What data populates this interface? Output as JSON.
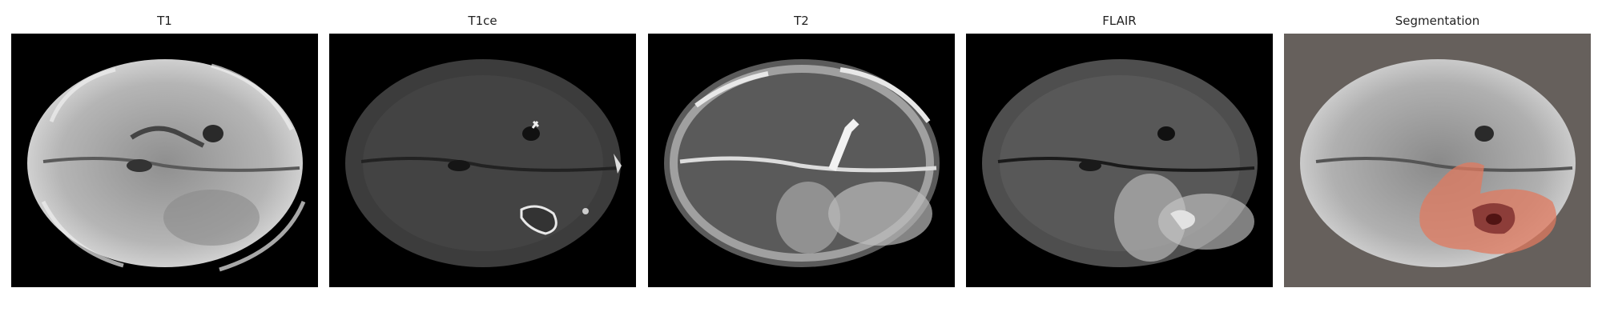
{
  "panels": [
    {
      "title": "T1",
      "modality": "t1"
    },
    {
      "title": "T1ce",
      "modality": "t1ce"
    },
    {
      "title": "T2",
      "modality": "t2"
    },
    {
      "title": "FLAIR",
      "modality": "flair"
    },
    {
      "title": "Segmentation",
      "modality": "segmentation"
    }
  ],
  "colors": {
    "figure_background": "#ffffff",
    "image_background": "#000000",
    "segmentation_background": "#66605c",
    "edema_color": "#e07a5f",
    "tumor_core_color": "#7a2a2a",
    "enhancing_color": "#4a1010"
  }
}
